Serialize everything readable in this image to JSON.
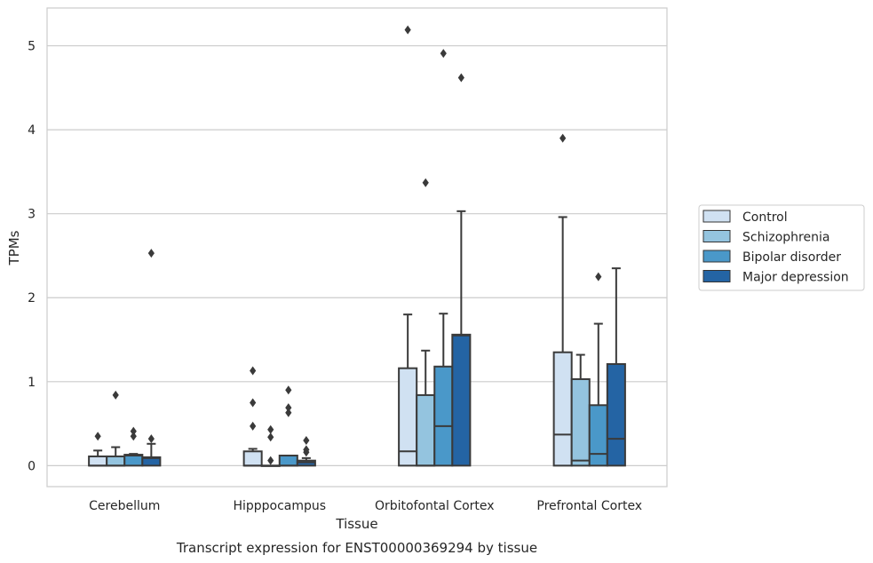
{
  "chart_data": {
    "type": "box",
    "caption": "Transcript expression for ENST00000369294 by tissue",
    "xlabel": "Tissue",
    "ylabel": "TPMs",
    "ylim": [
      -0.25,
      5.45
    ],
    "yticks": [
      "0",
      "1",
      "2",
      "3",
      "4",
      "5"
    ],
    "grid": "horizontal",
    "legend_position": "right",
    "categories": [
      "Cerebellum",
      "Hipppocampus",
      "Orbitofontal Cortex",
      "Prefrontal Cortex"
    ],
    "series": [
      {
        "name": "Control",
        "color": "#d0e1f2",
        "boxes": [
          {
            "q1": 0.0,
            "median": 0.0,
            "q3": 0.11,
            "whisker_low": 0.0,
            "whisker_high": 0.18,
            "outliers": [
              0.35
            ]
          },
          {
            "q1": 0.0,
            "median": 0.0,
            "q3": 0.17,
            "whisker_low": 0.0,
            "whisker_high": 0.2,
            "outliers": [
              0.47,
              0.75,
              1.13
            ]
          },
          {
            "q1": 0.0,
            "median": 0.17,
            "q3": 1.16,
            "whisker_low": 0.0,
            "whisker_high": 1.8,
            "outliers": [
              5.19
            ]
          },
          {
            "q1": 0.0,
            "median": 0.37,
            "q3": 1.35,
            "whisker_low": 0.0,
            "whisker_high": 2.96,
            "outliers": [
              3.9
            ]
          }
        ]
      },
      {
        "name": "Schizophrenia",
        "color": "#94c4df",
        "boxes": [
          {
            "q1": 0.0,
            "median": 0.0,
            "q3": 0.11,
            "whisker_low": 0.0,
            "whisker_high": 0.22,
            "outliers": [
              0.84
            ]
          },
          {
            "q1": 0.0,
            "median": 0.0,
            "q3": 0.0,
            "whisker_low": 0.0,
            "whisker_high": 0.0,
            "outliers": [
              0.06,
              0.34,
              0.43
            ]
          },
          {
            "q1": 0.0,
            "median": 0.0,
            "q3": 0.84,
            "whisker_low": 0.0,
            "whisker_high": 1.37,
            "outliers": [
              3.37
            ]
          },
          {
            "q1": 0.0,
            "median": 0.06,
            "q3": 1.03,
            "whisker_low": 0.0,
            "whisker_high": 1.32,
            "outliers": []
          }
        ]
      },
      {
        "name": "Bipolar disorder",
        "color": "#4a98c9",
        "boxes": [
          {
            "q1": 0.0,
            "median": 0.12,
            "q3": 0.13,
            "whisker_low": 0.0,
            "whisker_high": 0.14,
            "outliers": [
              0.35,
              0.41
            ]
          },
          {
            "q1": 0.0,
            "median": 0.0,
            "q3": 0.12,
            "whisker_low": 0.0,
            "whisker_high": 0.12,
            "outliers": [
              0.63,
              0.69,
              0.9
            ]
          },
          {
            "q1": 0.0,
            "median": 0.47,
            "q3": 1.18,
            "whisker_low": 0.0,
            "whisker_high": 1.81,
            "outliers": [
              4.91
            ]
          },
          {
            "q1": 0.0,
            "median": 0.14,
            "q3": 0.72,
            "whisker_low": 0.0,
            "whisker_high": 1.69,
            "outliers": [
              2.25
            ]
          }
        ]
      },
      {
        "name": "Major depression",
        "color": "#2464a4",
        "boxes": [
          {
            "q1": 0.0,
            "median": 0.09,
            "q3": 0.1,
            "whisker_low": 0.0,
            "whisker_high": 0.26,
            "outliers": [
              0.32,
              2.53
            ]
          },
          {
            "q1": 0.0,
            "median": 0.04,
            "q3": 0.06,
            "whisker_low": 0.0,
            "whisker_high": 0.09,
            "outliers": [
              0.16,
              0.19,
              0.3
            ]
          },
          {
            "q1": 0.0,
            "median": 1.55,
            "q3": 1.56,
            "whisker_low": 0.0,
            "whisker_high": 3.03,
            "outliers": [
              4.62
            ]
          },
          {
            "q1": 0.0,
            "median": 0.32,
            "q3": 1.21,
            "whisker_low": 0.0,
            "whisker_high": 2.35,
            "outliers": []
          }
        ]
      }
    ]
  }
}
